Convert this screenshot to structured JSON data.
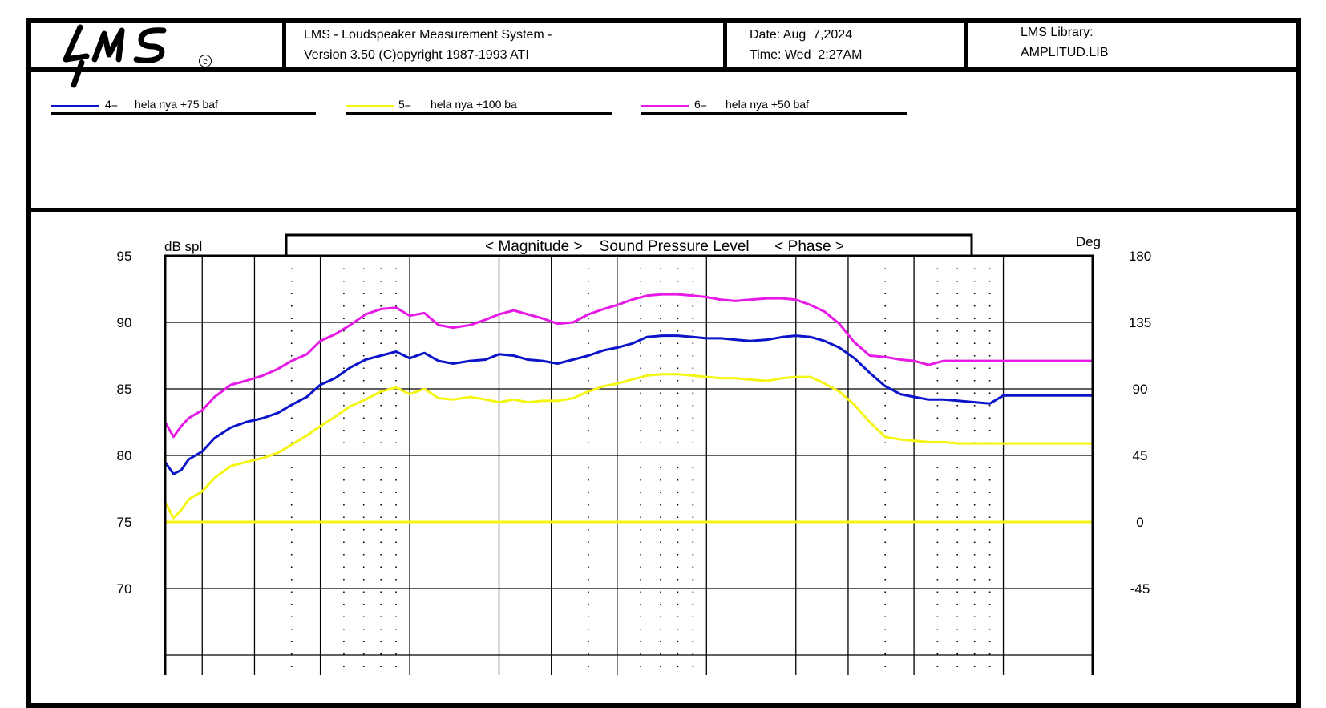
{
  "header": {
    "logo_text": "LMS",
    "copyright_symbol": "c",
    "system_line1": "LMS - Loudspeaker Measurement System -",
    "system_line2": "Version 3.50 (C)opyright 1987-1993 ATI",
    "date_line": "Date: Aug  7,2024",
    "time_line": "Time: Wed  2:27AM",
    "library_line1": "LMS Library:",
    "library_line2": "AMPLITUD.LIB"
  },
  "legend": [
    {
      "number": "4=",
      "name": "hela nya +75 baf",
      "color": "#0a14c8"
    },
    {
      "number": "5=",
      "name": "hela nya +100 ba",
      "color": "#f5f514"
    },
    {
      "number": "6=",
      "name": "hela nya +50 baf",
      "color": "#e619e6"
    }
  ],
  "chart_data": {
    "type": "line",
    "title": "< Magnitude >    Sound Pressure Level      < Phase >",
    "ylabel_left": "dB spl",
    "ylabel_right": "Deg",
    "y_ticks_left": [
      "95",
      "90",
      "85",
      "80",
      "75",
      "70"
    ],
    "y_ticks_right": [
      "180",
      "135",
      "90",
      "45",
      "0",
      "-45"
    ],
    "ylim_visible": [
      67.5,
      95
    ],
    "grid": true,
    "x_log_decades": [
      "10",
      "100",
      "1000",
      "10000"
    ],
    "xlim": [
      15,
      20000
    ],
    "series": [
      {
        "name": "hela nya +75 baf",
        "color": "#0a14c8",
        "x": [
          15,
          16,
          17,
          18,
          20,
          22,
          25,
          28,
          32,
          36,
          40,
          45,
          50,
          56,
          63,
          71,
          80,
          90,
          100,
          112,
          125,
          140,
          160,
          180,
          200,
          224,
          250,
          280,
          315,
          355,
          400,
          450,
          500,
          560,
          630,
          710,
          800,
          900,
          1000,
          1120,
          1250,
          1400,
          1600,
          1800,
          2000,
          2240,
          2500,
          2800,
          3150,
          3550,
          4000,
          4500,
          5000,
          5600,
          6300,
          7100,
          8000,
          9000,
          10000,
          11200,
          12500,
          14000,
          16000,
          18000,
          20000
        ],
        "y": [
          79.5,
          78.6,
          78.9,
          79.7,
          80.3,
          81.3,
          82.1,
          82.5,
          82.8,
          83.2,
          83.8,
          84.4,
          85.3,
          85.8,
          86.6,
          87.2,
          87.5,
          87.8,
          87.3,
          87.7,
          87.1,
          86.9,
          87.1,
          87.2,
          87.6,
          87.5,
          87.2,
          87.1,
          86.9,
          87.2,
          87.5,
          87.9,
          88.1,
          88.4,
          88.9,
          89.0,
          89.0,
          88.9,
          88.8,
          88.8,
          88.7,
          88.6,
          88.7,
          88.9,
          89.0,
          88.9,
          88.6,
          88.1,
          87.3,
          86.2,
          85.2,
          84.6,
          84.4,
          84.2,
          84.2,
          84.1,
          84.0,
          83.9,
          84.5,
          84.5,
          84.5,
          84.5,
          84.5,
          84.5,
          84.5
        ]
      },
      {
        "name": "hela nya +100 ba",
        "color": "#f5f514",
        "x": [
          15,
          16,
          17,
          18,
          20,
          22,
          25,
          28,
          32,
          36,
          40,
          45,
          50,
          56,
          63,
          71,
          80,
          90,
          100,
          112,
          125,
          140,
          160,
          180,
          200,
          224,
          250,
          280,
          315,
          355,
          400,
          450,
          500,
          560,
          630,
          710,
          800,
          900,
          1000,
          1120,
          1250,
          1400,
          1600,
          1800,
          2000,
          2240,
          2500,
          2800,
          3150,
          3550,
          4000,
          4500,
          5000,
          5600,
          6300,
          7100,
          8000,
          9000,
          10000,
          11200,
          12500,
          14000,
          16000,
          18000,
          20000
        ],
        "y": [
          76.5,
          75.3,
          75.9,
          76.7,
          77.3,
          78.3,
          79.2,
          79.5,
          79.8,
          80.2,
          80.8,
          81.5,
          82.2,
          82.9,
          83.7,
          84.2,
          84.8,
          85.1,
          84.6,
          85.0,
          84.3,
          84.2,
          84.4,
          84.2,
          84.0,
          84.2,
          84.0,
          84.1,
          84.1,
          84.3,
          84.8,
          85.2,
          85.4,
          85.7,
          86.0,
          86.1,
          86.1,
          86.0,
          85.9,
          85.8,
          85.8,
          85.7,
          85.6,
          85.8,
          85.9,
          85.9,
          85.4,
          84.8,
          83.8,
          82.5,
          81.4,
          81.2,
          81.1,
          81.0,
          81.0,
          80.9,
          80.9,
          80.9,
          80.9,
          80.9,
          80.9,
          80.9,
          80.9,
          80.9,
          80.9
        ]
      },
      {
        "name": "hela nya +50 baf",
        "color": "#e619e6",
        "x": [
          15,
          16,
          17,
          18,
          20,
          22,
          25,
          28,
          32,
          36,
          40,
          45,
          50,
          56,
          63,
          71,
          80,
          90,
          100,
          112,
          125,
          140,
          160,
          180,
          200,
          224,
          250,
          280,
          315,
          355,
          400,
          450,
          500,
          560,
          630,
          710,
          800,
          900,
          1000,
          1120,
          1250,
          1400,
          1600,
          1800,
          2000,
          2240,
          2500,
          2800,
          3150,
          3550,
          4000,
          4500,
          5000,
          5600,
          6300,
          7100,
          8000,
          9000,
          10000,
          11200,
          12500,
          14000,
          16000,
          18000,
          20000
        ],
        "y": [
          82.5,
          81.4,
          82.2,
          82.8,
          83.4,
          84.4,
          85.3,
          85.6,
          86.0,
          86.5,
          87.1,
          87.6,
          88.6,
          89.1,
          89.8,
          90.6,
          91.0,
          91.1,
          90.5,
          90.7,
          89.8,
          89.6,
          89.8,
          90.2,
          90.6,
          90.9,
          90.6,
          90.3,
          89.9,
          90.0,
          90.6,
          91.0,
          91.3,
          91.7,
          92.0,
          92.1,
          92.1,
          92.0,
          91.9,
          91.7,
          91.6,
          91.7,
          91.8,
          91.8,
          91.7,
          91.3,
          90.8,
          89.9,
          88.5,
          87.5,
          87.4,
          87.2,
          87.1,
          86.8,
          87.1,
          87.1,
          87.1,
          87.1,
          87.1,
          87.1,
          87.1,
          87.1,
          87.1,
          87.1,
          87.1
        ]
      },
      {
        "name": "",
        "color": "#f5f514",
        "x": [
          15,
          20000
        ],
        "y": [
          75,
          75
        ]
      }
    ]
  }
}
